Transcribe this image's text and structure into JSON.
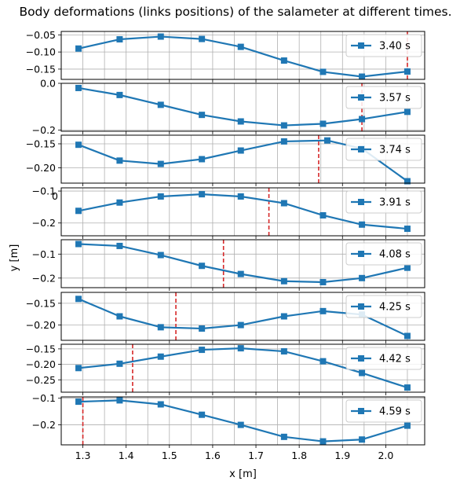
{
  "title": "Body deformations (links positions) of the salameter at different times.",
  "chart_data": {
    "type": "line",
    "xlabel": "x [m]",
    "ylabel": "y [m]",
    "xlim": [
      1.25,
      2.09
    ],
    "xticks": [
      1.3,
      1.4,
      1.5,
      1.6,
      1.7,
      1.8,
      1.9,
      2.0
    ],
    "xtick_labels": [
      "1.3",
      "1.4",
      "1.5",
      "1.6",
      "1.7",
      "1.8",
      "1.9",
      "2.0"
    ],
    "x_minor_grid_step": 0.05,
    "grid": true,
    "line_color": "#1f77b4",
    "marker_line_color": "#d62728",
    "legend_position": "upper right",
    "stray_tick_label": "0",
    "panels": [
      {
        "label": "3.40 s",
        "ylim": [
          -0.18,
          -0.04
        ],
        "yticks": [
          -0.05,
          -0.1,
          -0.15
        ],
        "ytick_labels": [
          "-0.05",
          "-0.10",
          "-0.15"
        ],
        "marker_x": 2.05,
        "x": [
          1.29,
          1.385,
          1.48,
          1.575,
          1.665,
          1.765,
          1.855,
          1.945,
          2.05
        ],
        "y": [
          -0.09,
          -0.063,
          -0.055,
          -0.062,
          -0.085,
          -0.125,
          -0.158,
          -0.172,
          -0.157
        ]
      },
      {
        "label": "3.57 s",
        "ylim": [
          -0.205,
          0.0
        ],
        "yticks": [
          0.0,
          -0.2
        ],
        "ytick_labels": [
          "0.0",
          "-0.2"
        ],
        "marker_x": 1.945,
        "x": [
          1.29,
          1.385,
          1.48,
          1.575,
          1.665,
          1.765,
          1.855,
          1.945,
          2.05
        ],
        "y": [
          -0.02,
          -0.05,
          -0.092,
          -0.135,
          -0.163,
          -0.18,
          -0.173,
          -0.153,
          -0.122
        ]
      },
      {
        "label": "3.74 s",
        "ylim": [
          -0.232,
          -0.132
        ],
        "yticks": [
          -0.15,
          -0.2
        ],
        "ytick_labels": [
          "-0.15",
          "-0.20"
        ],
        "marker_x": 1.845,
        "x": [
          1.29,
          1.385,
          1.48,
          1.575,
          1.665,
          1.765,
          1.865,
          1.945,
          2.05
        ],
        "y": [
          -0.152,
          -0.185,
          -0.192,
          -0.182,
          -0.164,
          -0.145,
          -0.143,
          -0.16,
          -0.228
        ]
      },
      {
        "label": "3.91 s",
        "ylim": [
          -0.24,
          -0.09
        ],
        "yticks": [
          -0.1,
          -0.2
        ],
        "ytick_labels": [
          "-0.1",
          "-0.2"
        ],
        "marker_x": 1.73,
        "x": [
          1.29,
          1.385,
          1.48,
          1.575,
          1.665,
          1.765,
          1.855,
          1.945,
          2.05
        ],
        "y": [
          -0.162,
          -0.136,
          -0.117,
          -0.11,
          -0.117,
          -0.138,
          -0.176,
          -0.205,
          -0.218
        ]
      },
      {
        "label": "4.08 s",
        "ylim": [
          -0.24,
          -0.04
        ],
        "yticks": [
          -0.1,
          -0.2
        ],
        "ytick_labels": [
          "-0.1",
          "-0.2"
        ],
        "marker_x": 1.625,
        "x": [
          1.29,
          1.385,
          1.48,
          1.575,
          1.665,
          1.765,
          1.855,
          1.945,
          2.05
        ],
        "y": [
          -0.058,
          -0.066,
          -0.104,
          -0.149,
          -0.183,
          -0.213,
          -0.217,
          -0.2,
          -0.157
        ]
      },
      {
        "label": "4.25 s",
        "ylim": [
          -0.235,
          -0.125
        ],
        "yticks": [
          -0.15,
          -0.2
        ],
        "ytick_labels": [
          "-0.15",
          "-0.20"
        ],
        "marker_x": 1.515,
        "x": [
          1.29,
          1.385,
          1.48,
          1.575,
          1.665,
          1.765,
          1.855,
          1.945,
          2.05
        ],
        "y": [
          -0.14,
          -0.18,
          -0.205,
          -0.208,
          -0.2,
          -0.18,
          -0.168,
          -0.176,
          -0.225
        ]
      },
      {
        "label": "4.42 s",
        "ylim": [
          -0.29,
          -0.135
        ],
        "yticks": [
          -0.15,
          -0.2,
          -0.25
        ],
        "ytick_labels": [
          "-0.15",
          "-0.20",
          "-0.25"
        ],
        "marker_x": 1.415,
        "x": [
          1.29,
          1.385,
          1.48,
          1.575,
          1.665,
          1.765,
          1.855,
          1.945,
          2.05
        ],
        "y": [
          -0.212,
          -0.198,
          -0.175,
          -0.153,
          -0.148,
          -0.158,
          -0.19,
          -0.228,
          -0.275
        ]
      },
      {
        "label": "4.59 s",
        "ylim": [
          -0.275,
          -0.095
        ],
        "yticks": [
          -0.1,
          -0.2
        ],
        "ytick_labels": [
          "-0.1",
          "-0.2"
        ],
        "marker_x": 1.3,
        "x": [
          1.29,
          1.385,
          1.48,
          1.575,
          1.665,
          1.765,
          1.855,
          1.945,
          2.05
        ],
        "y": [
          -0.113,
          -0.108,
          -0.123,
          -0.162,
          -0.2,
          -0.245,
          -0.262,
          -0.255,
          -0.203
        ]
      }
    ]
  }
}
